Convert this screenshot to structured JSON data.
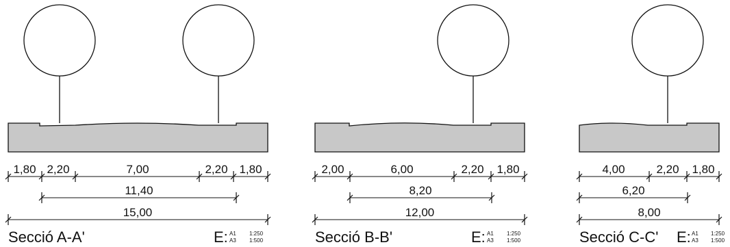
{
  "sections": [
    {
      "id": "A",
      "title": "Secció A-A'",
      "scale": {
        "prefix": "E:",
        "a1": "A1",
        "a3": "A3",
        "a1_ratio": "1:250",
        "a3_ratio": "1:500"
      },
      "dims": {
        "row1": [
          "1,80",
          "2,20",
          "7,00",
          "2,20",
          "1,80"
        ],
        "row2": "11,40",
        "row3": "15,00"
      }
    },
    {
      "id": "B",
      "title": "Secció B-B'",
      "scale": {
        "prefix": "E:",
        "a1": "A1",
        "a3": "A3",
        "a1_ratio": "1:250",
        "a3_ratio": "1:500"
      },
      "dims": {
        "row1": [
          "2,00",
          "6,00",
          "2,20",
          "1,80"
        ],
        "row2": "8,20",
        "row3": "12,00"
      }
    },
    {
      "id": "C",
      "title": "Secció C-C'",
      "scale": {
        "prefix": "E:",
        "a1": "A1",
        "a3": "A3",
        "a1_ratio": "1:250",
        "a3_ratio": "1:500"
      },
      "dims": {
        "row1": [
          "4,00",
          "2,20",
          "1,80"
        ],
        "row2": "6,20",
        "row3": "8,00"
      }
    }
  ],
  "colors": {
    "ground_fill": "#c8c8c8",
    "line": "#111111",
    "background": "#ffffff"
  }
}
